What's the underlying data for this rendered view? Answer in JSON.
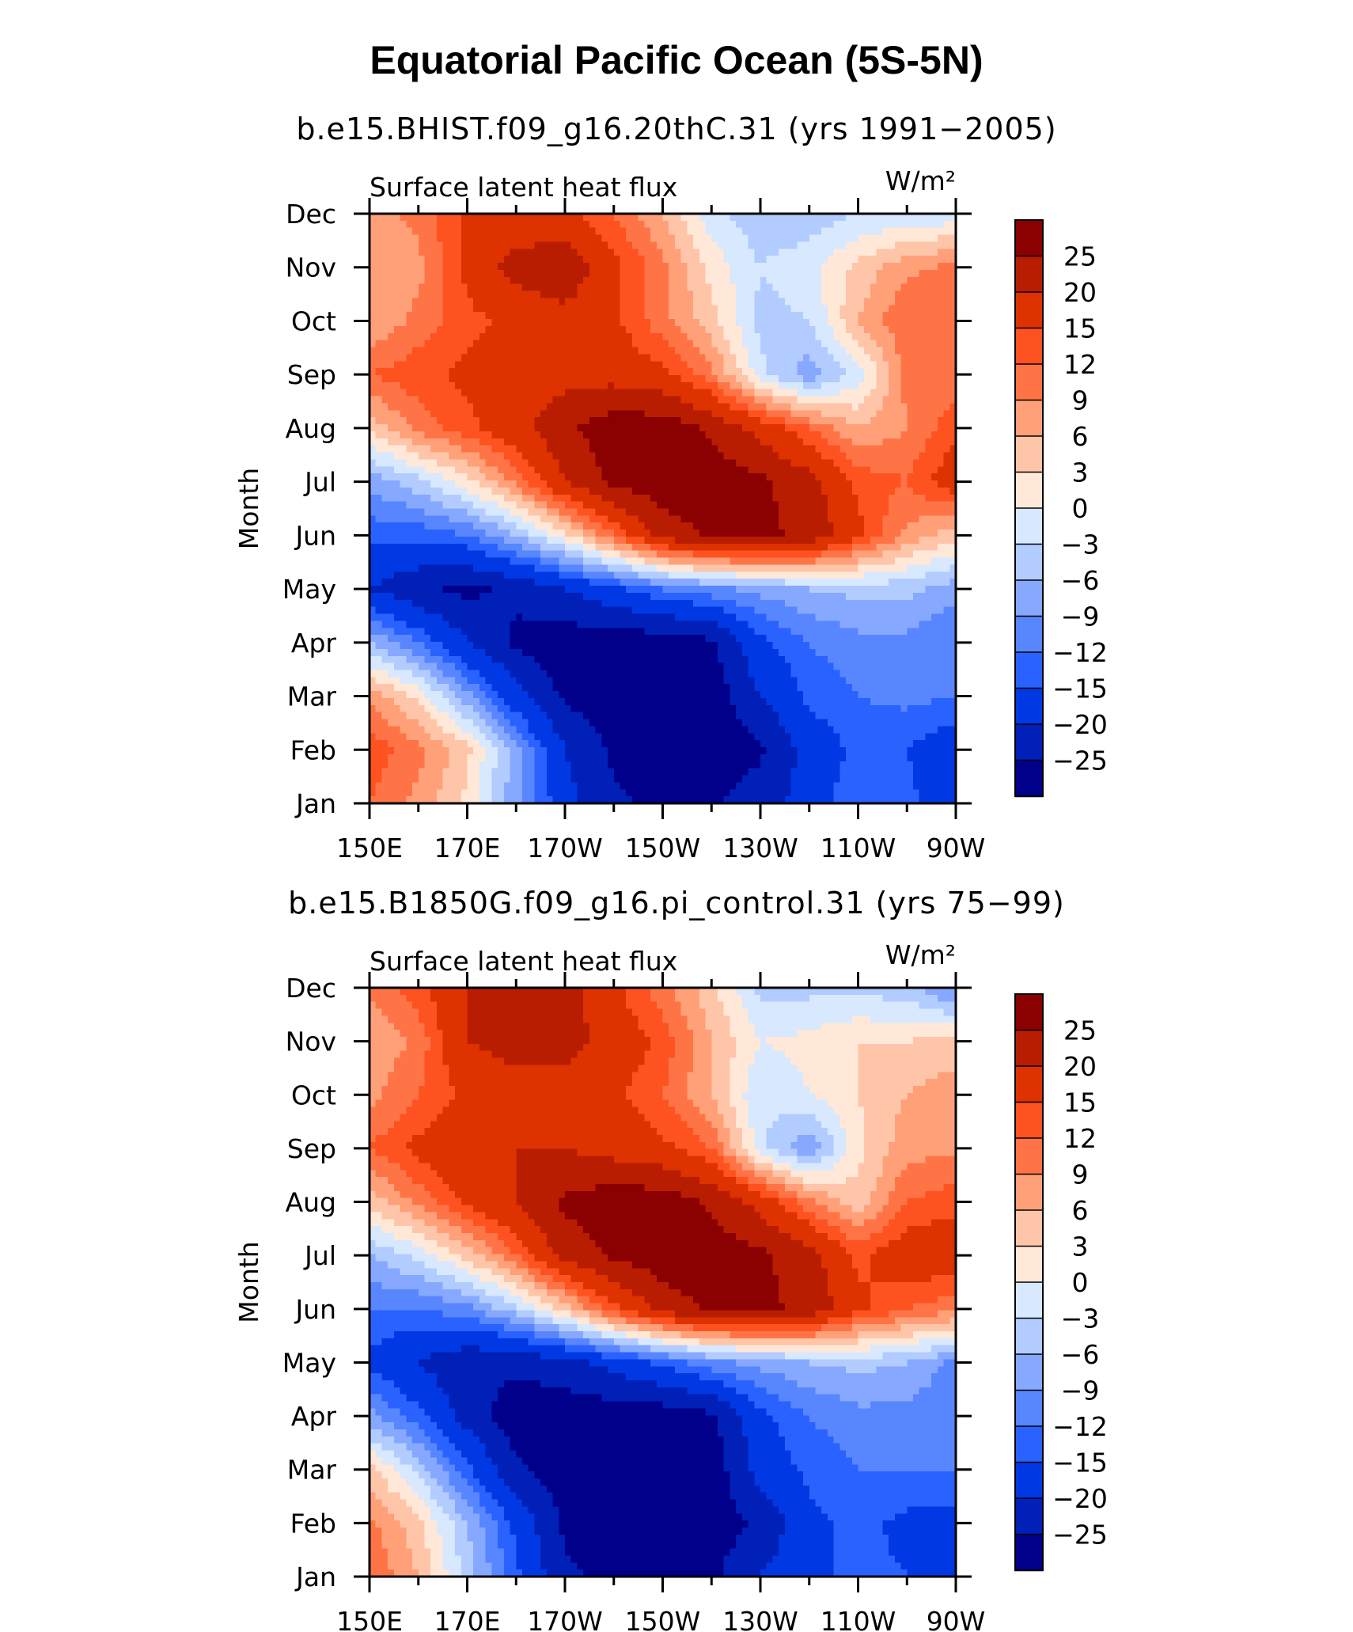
{
  "figure": {
    "title": "Equatorial Pacific Ocean (5S-5N)"
  },
  "colorbar": {
    "levels": [
      "25",
      "20",
      "15",
      "12",
      "9",
      "6",
      "3",
      "0",
      "−3",
      "−6",
      "−9",
      "−12",
      "−15",
      "−20",
      "−25"
    ],
    "colors": [
      "#8b0000",
      "#b81d02",
      "#de3200",
      "#fe5220",
      "#ff7446",
      "#ffa079",
      "#ffc5a9",
      "#ffe8d8",
      "#d7e8ff",
      "#b2ccff",
      "#87a8ff",
      "#5886ff",
      "#2a62ff",
      "#0038e4",
      "#0020b8",
      "#00008b"
    ]
  },
  "chart_data": [
    {
      "type": "heatmap",
      "subtitle": "b.e15.BHIST.f09_g16.20thC.31 (yrs 1991−2005)",
      "variable": "Surface latent heat flux",
      "units": "W/m²",
      "xlabel": "",
      "ylabel": "Month",
      "x_ticks": [
        "150E",
        "170E",
        "170W",
        "150W",
        "130W",
        "110W",
        "90W"
      ],
      "y_ticks": [
        "Jan",
        "Feb",
        "Mar",
        "Apr",
        "May",
        "Jun",
        "Jul",
        "Aug",
        "Sep",
        "Oct",
        "Nov",
        "Dec"
      ],
      "longitudes": [
        150,
        160,
        170,
        180,
        190,
        200,
        210,
        220,
        230,
        240,
        250,
        260,
        270
      ],
      "values": [
        [
          12,
          8,
          2,
          -8,
          -18,
          -24,
          -26,
          -26,
          -22,
          -18,
          -12,
          -14,
          -18
        ],
        [
          14,
          10,
          4,
          -8,
          -20,
          -26,
          -28,
          -28,
          -26,
          -18,
          -14,
          -15,
          -18
        ],
        [
          8,
          2,
          -8,
          -18,
          -26,
          -28,
          -28,
          -28,
          -20,
          -14,
          -12,
          -11,
          -12
        ],
        [
          -6,
          -12,
          -20,
          -26,
          -28,
          -28,
          -28,
          -26,
          -16,
          -12,
          -10,
          -10,
          -12
        ],
        [
          -20,
          -24,
          -26,
          -24,
          -20,
          -16,
          -12,
          -10,
          -8,
          -6,
          -5,
          -5,
          -8
        ],
        [
          -14,
          -14,
          -12,
          -6,
          2,
          12,
          22,
          26,
          26,
          24,
          16,
          8,
          4
        ],
        [
          -8,
          -4,
          2,
          10,
          20,
          26,
          28,
          28,
          26,
          22,
          14,
          12,
          18
        ],
        [
          4,
          10,
          14,
          18,
          24,
          28,
          28,
          24,
          18,
          12,
          6,
          9,
          14
        ],
        [
          12,
          14,
          16,
          16,
          18,
          18,
          16,
          10,
          -2,
          -8,
          -2,
          10,
          10
        ],
        [
          6,
          10,
          14,
          16,
          18,
          16,
          10,
          4,
          -4,
          -3,
          6,
          12,
          12
        ],
        [
          6,
          8,
          16,
          22,
          24,
          16,
          10,
          2,
          -3,
          -1,
          4,
          8,
          10
        ],
        [
          8,
          10,
          16,
          16,
          16,
          12,
          6,
          -2,
          -5,
          -5,
          -3,
          -3,
          -2
        ]
      ]
    },
    {
      "type": "heatmap",
      "subtitle": "b.e15.B1850G.f09_g16.pi_control.31 (yrs 75−99)",
      "variable": "Surface latent heat flux",
      "units": "W/m²",
      "xlabel": "",
      "ylabel": "Month",
      "x_ticks": [
        "150E",
        "170E",
        "170W",
        "150W",
        "130W",
        "110W",
        "90W"
      ],
      "y_ticks": [
        "Jan",
        "Feb",
        "Mar",
        "Apr",
        "May",
        "Jun",
        "Jul",
        "Aug",
        "Sep",
        "Oct",
        "Nov",
        "Dec"
      ],
      "longitudes": [
        150,
        160,
        170,
        180,
        190,
        200,
        210,
        220,
        230,
        240,
        250,
        260,
        270
      ],
      "values": [
        [
          12,
          6,
          -4,
          -14,
          -24,
          -26,
          -28,
          -26,
          -20,
          -16,
          -14,
          -15,
          -16
        ],
        [
          10,
          4,
          -6,
          -16,
          -26,
          -28,
          -28,
          -28,
          -24,
          -16,
          -14,
          -16,
          -16
        ],
        [
          4,
          -4,
          -14,
          -24,
          -28,
          -28,
          -28,
          -28,
          -18,
          -14,
          -12,
          -12,
          -12
        ],
        [
          -8,
          -14,
          -22,
          -28,
          -28,
          -28,
          -28,
          -26,
          -16,
          -12,
          -10,
          -10,
          -12
        ],
        [
          -16,
          -20,
          -24,
          -24,
          -22,
          -18,
          -14,
          -10,
          -8,
          -6,
          -5,
          -6,
          -10
        ],
        [
          -12,
          -12,
          -10,
          -4,
          4,
          14,
          22,
          26,
          26,
          24,
          16,
          12,
          10
        ],
        [
          -6,
          -2,
          4,
          12,
          22,
          26,
          28,
          28,
          26,
          22,
          14,
          18,
          18
        ],
        [
          4,
          10,
          16,
          20,
          26,
          28,
          28,
          24,
          18,
          10,
          4,
          12,
          14
        ],
        [
          12,
          16,
          20,
          20,
          20,
          18,
          16,
          12,
          -2,
          -9,
          2,
          8,
          8
        ],
        [
          8,
          12,
          16,
          18,
          18,
          16,
          12,
          6,
          -3,
          0,
          3,
          6,
          8
        ],
        [
          6,
          10,
          20,
          22,
          22,
          18,
          14,
          6,
          0,
          1,
          3,
          3,
          4
        ],
        [
          10,
          14,
          20,
          22,
          22,
          16,
          10,
          4,
          -4,
          -4,
          -4,
          -5,
          -10
        ]
      ]
    }
  ]
}
